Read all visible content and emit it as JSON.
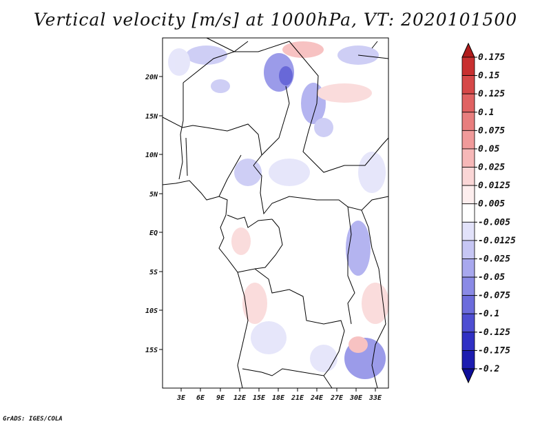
{
  "title": "Vertical velocity [m/s] at 1000hPa, VT: 2020101500",
  "credit": "GrADS: IGES/COLA",
  "map": {
    "lat_labels": [
      "20N",
      "15N",
      "10N",
      "5N",
      "EQ",
      "5S",
      "10S",
      "15S"
    ],
    "lon_labels": [
      "3E",
      "6E",
      "9E",
      "12E",
      "15E",
      "18E",
      "21E",
      "24E",
      "27E",
      "30E",
      "33E"
    ]
  },
  "colorbar": {
    "labels": [
      "0.175",
      "0.15",
      "0.125",
      "0.1",
      "0.075",
      "0.05",
      "0.025",
      "0.0125",
      "0.005",
      "-0.005",
      "-0.0125",
      "-0.025",
      "-0.05",
      "-0.075",
      "-0.1",
      "-0.125",
      "-0.175",
      "-0.2"
    ],
    "colors": [
      "#b01c1c",
      "#c83030",
      "#d64848",
      "#e06262",
      "#e87e7e",
      "#f09a9a",
      "#f6b8b8",
      "#fad6d6",
      "#fdeeee",
      "#ffffff",
      "#e2e2fa",
      "#c6c6f4",
      "#a8a8ee",
      "#8a8ae6",
      "#6c6cdc",
      "#4e4ed2",
      "#3030c4",
      "#1c1cb0",
      "#0e0e9a"
    ]
  }
}
